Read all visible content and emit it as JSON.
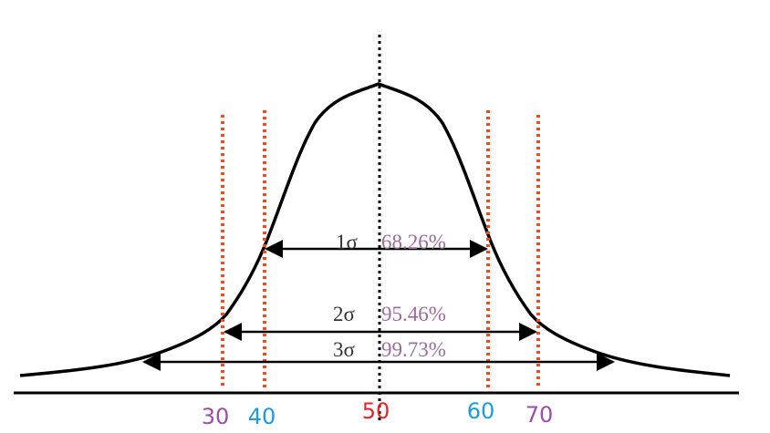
{
  "axis_labels": [
    "30",
    "40",
    "50",
    "60",
    "70"
  ],
  "intervals": [
    {
      "sigma": "1σ",
      "percent": "68.26%"
    },
    {
      "sigma": "2σ",
      "percent": "95.46%"
    },
    {
      "sigma": "3σ",
      "percent": "99.73%"
    }
  ]
}
